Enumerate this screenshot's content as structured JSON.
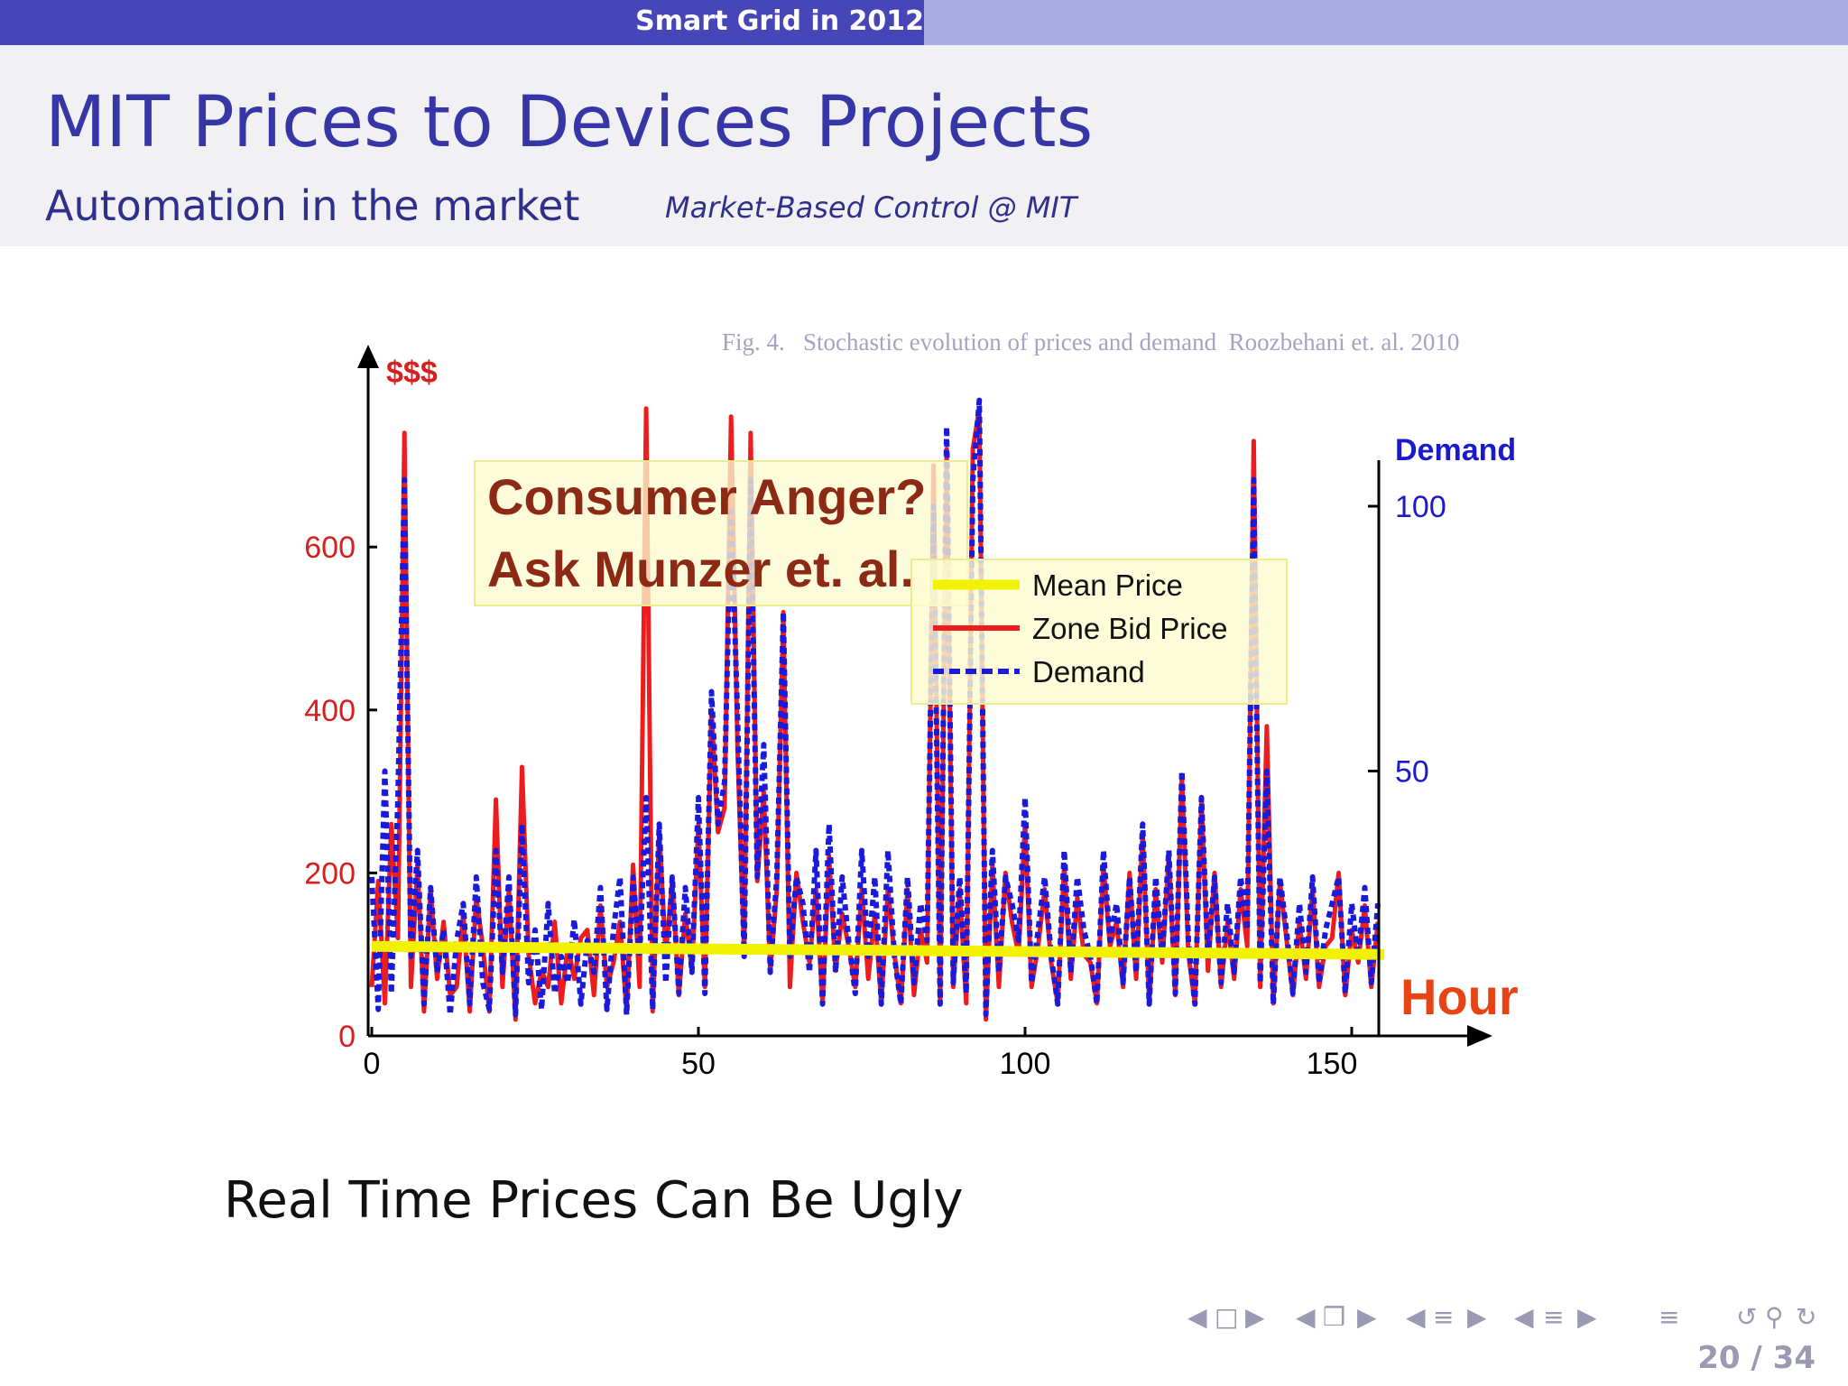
{
  "section_title": "Smart Grid in 2012",
  "frame": {
    "title": "MIT Prices to Devices Projects",
    "subtitle": "Automation in the market",
    "note": "Market-Based Control @ MIT"
  },
  "figure": {
    "caption": "Fig. 4.   Stochastic evolution of prices and demand  Roozbehani et. al. 2010",
    "callout_line1": "Consumer Anger?",
    "callout_line2": "Ask Munzer et. al."
  },
  "bottom_text": "Real Time Prices Can Be Ugly",
  "nav": {
    "page": "20 / 34",
    "icons": [
      "nav-prev-icon",
      "frame-icon",
      "nav-next-icon",
      "nav-prev-icon",
      "subsection-icon",
      "nav-next-icon",
      "nav-prev-icon",
      "section-icon",
      "nav-next-icon",
      "nav-prev-icon",
      "section-icon",
      "nav-next-icon",
      "toc-icon",
      "undo-icon",
      "search-icon",
      "redo-icon"
    ]
  },
  "chart_data": {
    "type": "line",
    "title": "",
    "xlabel": "Hour",
    "ylabel_left": "$$$",
    "ylabel_right": "Demand",
    "xlim": [
      0,
      152
    ],
    "ylim_left": [
      0,
      700
    ],
    "ylim_right": [
      0,
      115
    ],
    "x_ticks": [
      0,
      50,
      100,
      150
    ],
    "y_ticks_left": [
      0,
      200,
      400,
      600
    ],
    "y_ticks_right": [
      50,
      100
    ],
    "legend_position": "center-right",
    "colors": {
      "mean": "#f2f200",
      "price": "#ee1c1c",
      "demand": "#1a1adb",
      "left_axis": "#d81e1e",
      "right_axis": "#1a1acc",
      "hour": "#e84315"
    },
    "series": [
      {
        "name": "Mean Price",
        "axis": "left",
        "x": [
          0,
          155
        ],
        "values": [
          110,
          100
        ]
      },
      {
        "name": "Zone Bid Price",
        "axis": "left",
        "x": [
          0,
          1,
          2,
          3,
          4,
          5,
          6,
          7,
          8,
          9,
          10,
          11,
          12,
          13,
          14,
          15,
          16,
          17,
          18,
          19,
          20,
          21,
          22,
          23,
          24,
          25,
          26,
          27,
          28,
          29,
          30,
          31,
          32,
          33,
          34,
          35,
          36,
          37,
          38,
          39,
          40,
          41,
          42,
          43,
          44,
          45,
          46,
          47,
          48,
          49,
          50,
          51,
          52,
          53,
          54,
          55,
          56,
          57,
          58,
          59,
          60,
          61,
          62,
          63,
          64,
          65,
          66,
          67,
          68,
          69,
          70,
          71,
          72,
          73,
          74,
          75,
          76,
          77,
          78,
          79,
          80,
          81,
          82,
          83,
          84,
          85,
          86,
          87,
          88,
          89,
          90,
          91,
          92,
          93,
          94,
          95,
          96,
          97,
          98,
          99,
          100,
          101,
          102,
          103,
          104,
          105,
          106,
          107,
          108,
          109,
          110,
          111,
          112,
          113,
          114,
          115,
          116,
          117,
          118,
          119,
          120,
          121,
          122,
          123,
          124,
          125,
          126,
          127,
          128,
          129,
          130,
          131,
          132,
          133,
          134,
          135,
          136,
          137,
          138,
          139,
          140,
          141,
          142,
          143,
          144,
          145,
          146,
          147,
          148,
          149,
          150,
          151,
          152,
          153,
          154
        ],
        "values": [
          60,
          190,
          40,
          260,
          120,
          740,
          60,
          210,
          30,
          180,
          70,
          140,
          50,
          60,
          150,
          30,
          170,
          110,
          30,
          290,
          60,
          180,
          20,
          330,
          100,
          40,
          80,
          60,
          140,
          40,
          110,
          70,
          120,
          130,
          50,
          160,
          60,
          90,
          140,
          30,
          210,
          60,
          770,
          30,
          250,
          100,
          190,
          50,
          150,
          80,
          260,
          60,
          400,
          250,
          280,
          760,
          350,
          100,
          740,
          190,
          300,
          80,
          180,
          520,
          60,
          200,
          140,
          90,
          180,
          40,
          220,
          80,
          150,
          110,
          60,
          180,
          70,
          150,
          40,
          180,
          100,
          40,
          180,
          50,
          130,
          90,
          700,
          40,
          720,
          60,
          180,
          40,
          720,
          770,
          20,
          210,
          60,
          200,
          140,
          100,
          260,
          60,
          110,
          180,
          90,
          40,
          210,
          70,
          170,
          100,
          90,
          40,
          210,
          110,
          140,
          60,
          200,
          70,
          250,
          40,
          180,
          90,
          220,
          50,
          320,
          100,
          40,
          290,
          80,
          200,
          60,
          140,
          70,
          180,
          110,
          730,
          60,
          380,
          40,
          190,
          120,
          50,
          140,
          70,
          180,
          60,
          110,
          120,
          200,
          50,
          130,
          90,
          160,
          60,
          140
        ]
      },
      {
        "name": "Demand",
        "axis": "right",
        "x": [
          0,
          1,
          2,
          3,
          4,
          5,
          6,
          7,
          8,
          9,
          10,
          11,
          12,
          13,
          14,
          15,
          16,
          17,
          18,
          19,
          20,
          21,
          22,
          23,
          24,
          25,
          26,
          27,
          28,
          29,
          30,
          31,
          32,
          33,
          34,
          35,
          36,
          37,
          38,
          39,
          40,
          41,
          42,
          43,
          44,
          45,
          46,
          47,
          48,
          49,
          50,
          51,
          52,
          53,
          54,
          55,
          56,
          57,
          58,
          59,
          60,
          61,
          62,
          63,
          64,
          65,
          66,
          67,
          68,
          69,
          70,
          71,
          72,
          73,
          74,
          75,
          76,
          77,
          78,
          79,
          80,
          81,
          82,
          83,
          84,
          85,
          86,
          87,
          88,
          89,
          90,
          91,
          92,
          93,
          94,
          95,
          96,
          97,
          98,
          99,
          100,
          101,
          102,
          103,
          104,
          105,
          106,
          107,
          108,
          109,
          110,
          111,
          112,
          113,
          114,
          115,
          116,
          117,
          118,
          119,
          120,
          121,
          122,
          123,
          124,
          125,
          126,
          127,
          128,
          129,
          130,
          131,
          132,
          133,
          134,
          135,
          136,
          137,
          138,
          139,
          140,
          141,
          142,
          143,
          144,
          145,
          146,
          147,
          148,
          149,
          150,
          151,
          152,
          153,
          154
        ],
        "values": [
          30,
          5,
          50,
          8,
          45,
          105,
          15,
          35,
          6,
          28,
          12,
          20,
          4,
          18,
          25,
          6,
          30,
          10,
          5,
          35,
          12,
          30,
          4,
          40,
          10,
          20,
          5,
          25,
          8,
          15,
          10,
          22,
          6,
          18,
          12,
          28,
          5,
          20,
          30,
          4,
          30,
          15,
          45,
          5,
          40,
          10,
          30,
          8,
          28,
          12,
          45,
          8,
          65,
          40,
          48,
          100,
          60,
          15,
          105,
          30,
          55,
          12,
          30,
          80,
          15,
          30,
          25,
          12,
          35,
          6,
          40,
          12,
          30,
          18,
          8,
          35,
          15,
          30,
          6,
          35,
          15,
          6,
          30,
          10,
          25,
          18,
          100,
          6,
          115,
          10,
          30,
          8,
          105,
          120,
          4,
          35,
          12,
          30,
          25,
          18,
          45,
          10,
          20,
          30,
          15,
          6,
          35,
          12,
          30,
          20,
          15,
          6,
          35,
          18,
          25,
          10,
          30,
          12,
          40,
          6,
          30,
          15,
          35,
          8,
          50,
          18,
          6,
          45,
          15,
          30,
          10,
          25,
          12,
          30,
          20,
          105,
          10,
          50,
          6,
          30,
          20,
          8,
          25,
          12,
          30,
          10,
          20,
          25,
          30,
          8,
          25,
          15,
          28,
          10,
          25
        ]
      }
    ]
  }
}
